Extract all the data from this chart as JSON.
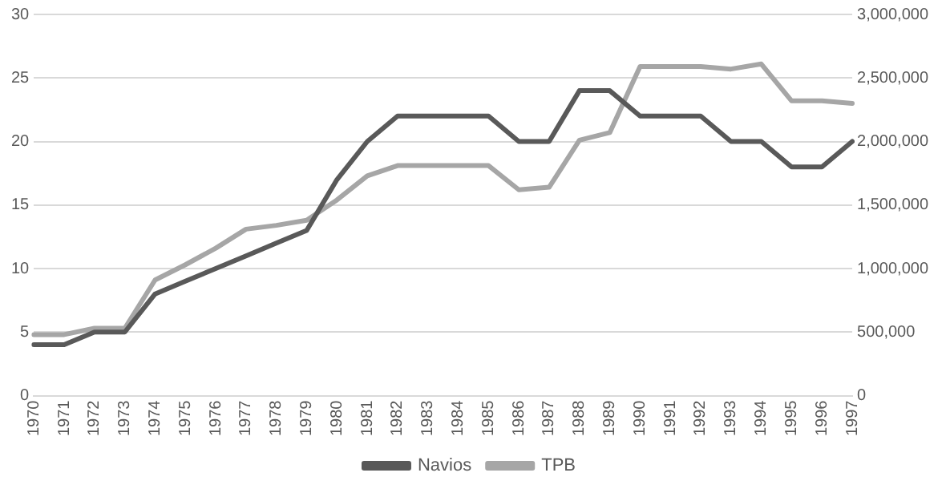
{
  "chart_data": {
    "type": "line",
    "categories": [
      "1970",
      "1971",
      "1972",
      "1973",
      "1974",
      "1975",
      "1976",
      "1977",
      "1978",
      "1979",
      "1980",
      "1981",
      "1982",
      "1983",
      "1984",
      "1985",
      "1986",
      "1987",
      "1988",
      "1989",
      "1990",
      "1991",
      "1992",
      "1993",
      "1994",
      "1995",
      "1996",
      "1997"
    ],
    "series": [
      {
        "name": "Navios",
        "color": "#595959",
        "values": [
          4,
          4,
          5,
          5,
          8,
          9,
          10,
          11,
          12,
          13,
          17,
          20,
          22,
          22,
          22,
          22,
          20,
          20,
          24,
          24,
          22,
          22,
          22,
          20,
          20,
          18,
          18,
          20
        ]
      },
      {
        "name": "TPB",
        "color": "#a6a6a6",
        "axis": "y2",
        "values": [
          480000,
          480000,
          530000,
          530000,
          910000,
          1030000,
          1160000,
          1310000,
          1340000,
          1380000,
          1540000,
          1730000,
          1810000,
          1810000,
          1810000,
          1810000,
          1620000,
          1640000,
          2010000,
          2070000,
          2590000,
          2590000,
          2590000,
          2570000,
          2610000,
          2320000,
          2320000,
          2300000
        ]
      }
    ],
    "ylim": [
      0,
      30
    ],
    "yticks": [
      0,
      5,
      10,
      15,
      20,
      25,
      30
    ],
    "y2lim": [
      0,
      3000000
    ],
    "y2ticks": [
      {
        "value": 0,
        "label": "0"
      },
      {
        "value": 500000,
        "label": "500,000"
      },
      {
        "value": 1000000,
        "label": "1,000,000"
      },
      {
        "value": 1500000,
        "label": "1,500,000"
      },
      {
        "value": 2000000,
        "label": "2,000,000"
      },
      {
        "value": 2500000,
        "label": "2,500,000"
      },
      {
        "value": 3000000,
        "label": "3,000,000"
      }
    ],
    "grid": "y",
    "legend": "bottom",
    "marker": "none",
    "line_style": "solid"
  }
}
